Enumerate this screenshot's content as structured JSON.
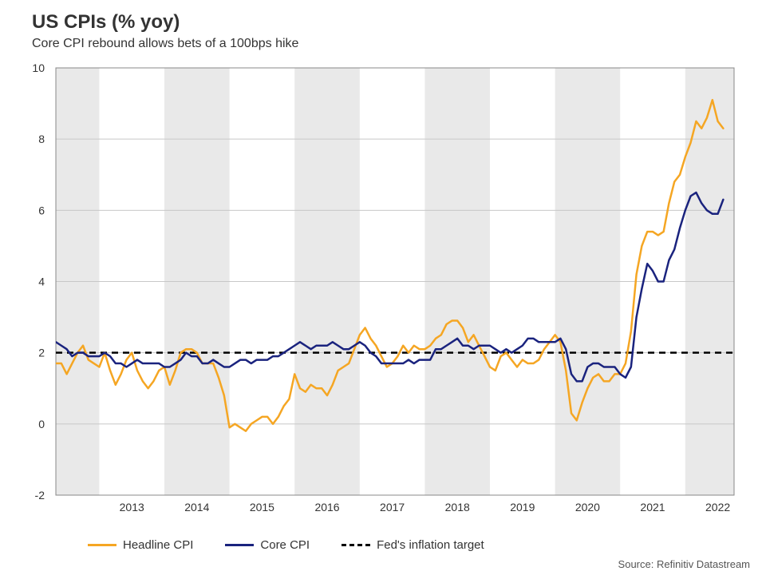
{
  "title": "US CPIs (% yoy)",
  "subtitle": "Core CPI rebound allows bets of a 100bps hike",
  "source": "Source: Refinitiv Datastream",
  "chart": {
    "type": "line",
    "background_color": "#ffffff",
    "band_color": "#e9e9e9",
    "grid_color": "#c8c8c8",
    "axis_color": "#888888",
    "font_color": "#333333",
    "title_fontsize": 24,
    "subtitle_fontsize": 16,
    "tick_fontsize": 14,
    "legend_fontsize": 15,
    "x_start": 2012.333,
    "x_end": 2022.75,
    "ylim": [
      -2,
      10
    ],
    "ytick_step": 2,
    "yticks": [
      -2,
      0,
      2,
      4,
      6,
      8,
      10
    ],
    "xticks": [
      2013,
      2014,
      2015,
      2016,
      2017,
      2018,
      2019,
      2020,
      2021,
      2022
    ],
    "fed_target": {
      "value": 2,
      "color": "#000000",
      "dash": "8,6",
      "width": 2.5,
      "label": "Fed's inflation target"
    },
    "series": [
      {
        "name": "Headline CPI",
        "color": "#f5a623",
        "width": 2.5,
        "data": [
          [
            2012.333,
            1.7
          ],
          [
            2012.417,
            1.7
          ],
          [
            2012.5,
            1.4
          ],
          [
            2012.583,
            1.7
          ],
          [
            2012.667,
            2.0
          ],
          [
            2012.75,
            2.2
          ],
          [
            2012.833,
            1.8
          ],
          [
            2012.917,
            1.7
          ],
          [
            2013.0,
            1.6
          ],
          [
            2013.083,
            2.0
          ],
          [
            2013.167,
            1.5
          ],
          [
            2013.25,
            1.1
          ],
          [
            2013.333,
            1.4
          ],
          [
            2013.417,
            1.8
          ],
          [
            2013.5,
            2.0
          ],
          [
            2013.583,
            1.5
          ],
          [
            2013.667,
            1.2
          ],
          [
            2013.75,
            1.0
          ],
          [
            2013.833,
            1.2
          ],
          [
            2013.917,
            1.5
          ],
          [
            2014.0,
            1.6
          ],
          [
            2014.083,
            1.1
          ],
          [
            2014.167,
            1.5
          ],
          [
            2014.25,
            2.0
          ],
          [
            2014.333,
            2.1
          ],
          [
            2014.417,
            2.1
          ],
          [
            2014.5,
            2.0
          ],
          [
            2014.583,
            1.7
          ],
          [
            2014.667,
            1.7
          ],
          [
            2014.75,
            1.7
          ],
          [
            2014.833,
            1.3
          ],
          [
            2014.917,
            0.8
          ],
          [
            2015.0,
            -0.1
          ],
          [
            2015.083,
            0.0
          ],
          [
            2015.167,
            -0.1
          ],
          [
            2015.25,
            -0.2
          ],
          [
            2015.333,
            0.0
          ],
          [
            2015.417,
            0.1
          ],
          [
            2015.5,
            0.2
          ],
          [
            2015.583,
            0.2
          ],
          [
            2015.667,
            0.0
          ],
          [
            2015.75,
            0.2
          ],
          [
            2015.833,
            0.5
          ],
          [
            2015.917,
            0.7
          ],
          [
            2016.0,
            1.4
          ],
          [
            2016.083,
            1.0
          ],
          [
            2016.167,
            0.9
          ],
          [
            2016.25,
            1.1
          ],
          [
            2016.333,
            1.0
          ],
          [
            2016.417,
            1.0
          ],
          [
            2016.5,
            0.8
          ],
          [
            2016.583,
            1.1
          ],
          [
            2016.667,
            1.5
          ],
          [
            2016.75,
            1.6
          ],
          [
            2016.833,
            1.7
          ],
          [
            2016.917,
            2.1
          ],
          [
            2017.0,
            2.5
          ],
          [
            2017.083,
            2.7
          ],
          [
            2017.167,
            2.4
          ],
          [
            2017.25,
            2.2
          ],
          [
            2017.333,
            1.9
          ],
          [
            2017.417,
            1.6
          ],
          [
            2017.5,
            1.7
          ],
          [
            2017.583,
            1.9
          ],
          [
            2017.667,
            2.2
          ],
          [
            2017.75,
            2.0
          ],
          [
            2017.833,
            2.2
          ],
          [
            2017.917,
            2.1
          ],
          [
            2018.0,
            2.1
          ],
          [
            2018.083,
            2.2
          ],
          [
            2018.167,
            2.4
          ],
          [
            2018.25,
            2.5
          ],
          [
            2018.333,
            2.8
          ],
          [
            2018.417,
            2.9
          ],
          [
            2018.5,
            2.9
          ],
          [
            2018.583,
            2.7
          ],
          [
            2018.667,
            2.3
          ],
          [
            2018.75,
            2.5
          ],
          [
            2018.833,
            2.2
          ],
          [
            2018.917,
            1.9
          ],
          [
            2019.0,
            1.6
          ],
          [
            2019.083,
            1.5
          ],
          [
            2019.167,
            1.9
          ],
          [
            2019.25,
            2.0
          ],
          [
            2019.333,
            1.8
          ],
          [
            2019.417,
            1.6
          ],
          [
            2019.5,
            1.8
          ],
          [
            2019.583,
            1.7
          ],
          [
            2019.667,
            1.7
          ],
          [
            2019.75,
            1.8
          ],
          [
            2019.833,
            2.1
          ],
          [
            2019.917,
            2.3
          ],
          [
            2020.0,
            2.5
          ],
          [
            2020.083,
            2.3
          ],
          [
            2020.167,
            1.5
          ],
          [
            2020.25,
            0.3
          ],
          [
            2020.333,
            0.1
          ],
          [
            2020.417,
            0.6
          ],
          [
            2020.5,
            1.0
          ],
          [
            2020.583,
            1.3
          ],
          [
            2020.667,
            1.4
          ],
          [
            2020.75,
            1.2
          ],
          [
            2020.833,
            1.2
          ],
          [
            2020.917,
            1.4
          ],
          [
            2021.0,
            1.4
          ],
          [
            2021.083,
            1.7
          ],
          [
            2021.167,
            2.6
          ],
          [
            2021.25,
            4.2
          ],
          [
            2021.333,
            5.0
          ],
          [
            2021.417,
            5.4
          ],
          [
            2021.5,
            5.4
          ],
          [
            2021.583,
            5.3
          ],
          [
            2021.667,
            5.4
          ],
          [
            2021.75,
            6.2
          ],
          [
            2021.833,
            6.8
          ],
          [
            2021.917,
            7.0
          ],
          [
            2022.0,
            7.5
          ],
          [
            2022.083,
            7.9
          ],
          [
            2022.167,
            8.5
          ],
          [
            2022.25,
            8.3
          ],
          [
            2022.333,
            8.6
          ],
          [
            2022.417,
            9.1
          ],
          [
            2022.5,
            8.5
          ],
          [
            2022.583,
            8.3
          ]
        ]
      },
      {
        "name": "Core CPI",
        "color": "#1a237e",
        "width": 2.5,
        "data": [
          [
            2012.333,
            2.3
          ],
          [
            2012.417,
            2.2
          ],
          [
            2012.5,
            2.1
          ],
          [
            2012.583,
            1.9
          ],
          [
            2012.667,
            2.0
          ],
          [
            2012.75,
            2.0
          ],
          [
            2012.833,
            1.9
          ],
          [
            2012.917,
            1.9
          ],
          [
            2013.0,
            1.9
          ],
          [
            2013.083,
            2.0
          ],
          [
            2013.167,
            1.9
          ],
          [
            2013.25,
            1.7
          ],
          [
            2013.333,
            1.7
          ],
          [
            2013.417,
            1.6
          ],
          [
            2013.5,
            1.7
          ],
          [
            2013.583,
            1.8
          ],
          [
            2013.667,
            1.7
          ],
          [
            2013.75,
            1.7
          ],
          [
            2013.833,
            1.7
          ],
          [
            2013.917,
            1.7
          ],
          [
            2014.0,
            1.6
          ],
          [
            2014.083,
            1.6
          ],
          [
            2014.167,
            1.7
          ],
          [
            2014.25,
            1.8
          ],
          [
            2014.333,
            2.0
          ],
          [
            2014.417,
            1.9
          ],
          [
            2014.5,
            1.9
          ],
          [
            2014.583,
            1.7
          ],
          [
            2014.667,
            1.7
          ],
          [
            2014.75,
            1.8
          ],
          [
            2014.833,
            1.7
          ],
          [
            2014.917,
            1.6
          ],
          [
            2015.0,
            1.6
          ],
          [
            2015.083,
            1.7
          ],
          [
            2015.167,
            1.8
          ],
          [
            2015.25,
            1.8
          ],
          [
            2015.333,
            1.7
          ],
          [
            2015.417,
            1.8
          ],
          [
            2015.5,
            1.8
          ],
          [
            2015.583,
            1.8
          ],
          [
            2015.667,
            1.9
          ],
          [
            2015.75,
            1.9
          ],
          [
            2015.833,
            2.0
          ],
          [
            2015.917,
            2.1
          ],
          [
            2016.0,
            2.2
          ],
          [
            2016.083,
            2.3
          ],
          [
            2016.167,
            2.2
          ],
          [
            2016.25,
            2.1
          ],
          [
            2016.333,
            2.2
          ],
          [
            2016.417,
            2.2
          ],
          [
            2016.5,
            2.2
          ],
          [
            2016.583,
            2.3
          ],
          [
            2016.667,
            2.2
          ],
          [
            2016.75,
            2.1
          ],
          [
            2016.833,
            2.1
          ],
          [
            2016.917,
            2.2
          ],
          [
            2017.0,
            2.3
          ],
          [
            2017.083,
            2.2
          ],
          [
            2017.167,
            2.0
          ],
          [
            2017.25,
            1.9
          ],
          [
            2017.333,
            1.7
          ],
          [
            2017.417,
            1.7
          ],
          [
            2017.5,
            1.7
          ],
          [
            2017.583,
            1.7
          ],
          [
            2017.667,
            1.7
          ],
          [
            2017.75,
            1.8
          ],
          [
            2017.833,
            1.7
          ],
          [
            2017.917,
            1.8
          ],
          [
            2018.0,
            1.8
          ],
          [
            2018.083,
            1.8
          ],
          [
            2018.167,
            2.1
          ],
          [
            2018.25,
            2.1
          ],
          [
            2018.333,
            2.2
          ],
          [
            2018.417,
            2.3
          ],
          [
            2018.5,
            2.4
          ],
          [
            2018.583,
            2.2
          ],
          [
            2018.667,
            2.2
          ],
          [
            2018.75,
            2.1
          ],
          [
            2018.833,
            2.2
          ],
          [
            2018.917,
            2.2
          ],
          [
            2019.0,
            2.2
          ],
          [
            2019.083,
            2.1
          ],
          [
            2019.167,
            2.0
          ],
          [
            2019.25,
            2.1
          ],
          [
            2019.333,
            2.0
          ],
          [
            2019.417,
            2.1
          ],
          [
            2019.5,
            2.2
          ],
          [
            2019.583,
            2.4
          ],
          [
            2019.667,
            2.4
          ],
          [
            2019.75,
            2.3
          ],
          [
            2019.833,
            2.3
          ],
          [
            2019.917,
            2.3
          ],
          [
            2020.0,
            2.3
          ],
          [
            2020.083,
            2.4
          ],
          [
            2020.167,
            2.1
          ],
          [
            2020.25,
            1.4
          ],
          [
            2020.333,
            1.2
          ],
          [
            2020.417,
            1.2
          ],
          [
            2020.5,
            1.6
          ],
          [
            2020.583,
            1.7
          ],
          [
            2020.667,
            1.7
          ],
          [
            2020.75,
            1.6
          ],
          [
            2020.833,
            1.6
          ],
          [
            2020.917,
            1.6
          ],
          [
            2021.0,
            1.4
          ],
          [
            2021.083,
            1.3
          ],
          [
            2021.167,
            1.6
          ],
          [
            2021.25,
            3.0
          ],
          [
            2021.333,
            3.8
          ],
          [
            2021.417,
            4.5
          ],
          [
            2021.5,
            4.3
          ],
          [
            2021.583,
            4.0
          ],
          [
            2021.667,
            4.0
          ],
          [
            2021.75,
            4.6
          ],
          [
            2021.833,
            4.9
          ],
          [
            2021.917,
            5.5
          ],
          [
            2022.0,
            6.0
          ],
          [
            2022.083,
            6.4
          ],
          [
            2022.167,
            6.5
          ],
          [
            2022.25,
            6.2
          ],
          [
            2022.333,
            6.0
          ],
          [
            2022.417,
            5.9
          ],
          [
            2022.5,
            5.9
          ],
          [
            2022.583,
            6.3
          ]
        ]
      }
    ]
  }
}
